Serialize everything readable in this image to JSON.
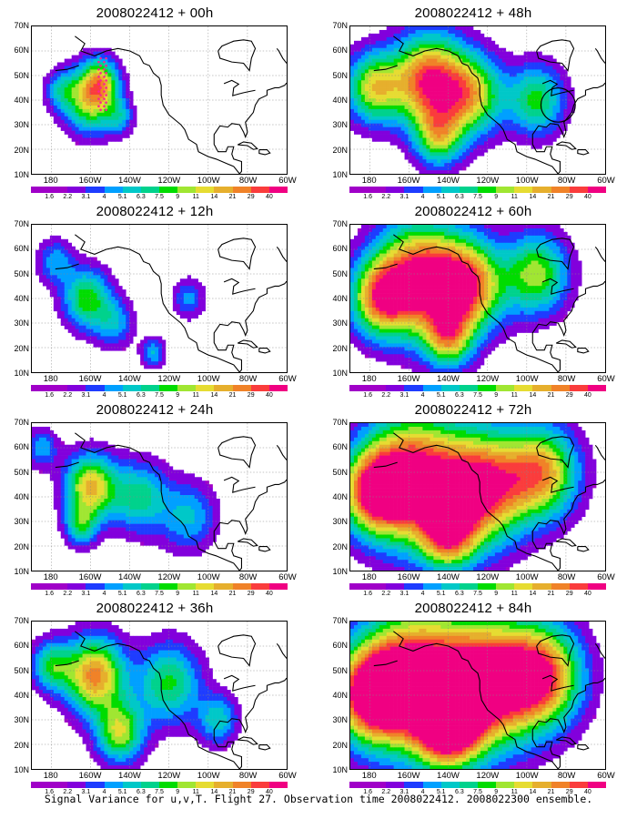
{
  "panels": [
    {
      "title": "2008022412 + 00h",
      "lead_hours": 0,
      "intensity": 0.55,
      "show_obs_points": true,
      "show_circle": false
    },
    {
      "title": "2008022412 + 12h",
      "lead_hours": 12,
      "intensity": 0.5,
      "show_obs_points": false,
      "show_circle": false
    },
    {
      "title": "2008022412 + 24h",
      "lead_hours": 24,
      "intensity": 0.62,
      "show_obs_points": false,
      "show_circle": false
    },
    {
      "title": "2008022412 + 36h",
      "lead_hours": 36,
      "intensity": 0.7,
      "show_obs_points": false,
      "show_circle": false
    },
    {
      "title": "2008022412 + 48h",
      "lead_hours": 48,
      "intensity": 0.78,
      "show_obs_points": false,
      "show_circle": true
    },
    {
      "title": "2008022412 + 60h",
      "lead_hours": 60,
      "intensity": 0.84,
      "show_obs_points": false,
      "show_circle": false
    },
    {
      "title": "2008022412 + 72h",
      "lead_hours": 72,
      "intensity": 0.9,
      "show_obs_points": false,
      "show_circle": false
    },
    {
      "title": "2008022412 + 84h",
      "lead_hours": 84,
      "intensity": 0.95,
      "show_obs_points": false,
      "show_circle": false
    }
  ],
  "lat_labels": [
    "70N",
    "60N",
    "50N",
    "40N",
    "30N",
    "20N",
    "10N"
  ],
  "lon_labels": [
    "180",
    "160W",
    "140W",
    "120W",
    "100W",
    "80W",
    "60W"
  ],
  "colorbar": {
    "labels": [
      "1.6",
      "2.2",
      "3.1",
      "4",
      "5.1",
      "6.3",
      "7.5",
      "9",
      "11",
      "14",
      "21",
      "29",
      "40"
    ],
    "colors": [
      "#a000c8",
      "#8200dc",
      "#1e3cff",
      "#00a0ff",
      "#00c8c8",
      "#00d28c",
      "#00dc00",
      "#a0e632",
      "#e6dc32",
      "#e6af2d",
      "#f08228",
      "#fa3c3c",
      "#f00082"
    ]
  },
  "caption": "Signal Variance for u,v,T. Flight 27. Observation time 2008022412. 2008022300 ensemble."
}
